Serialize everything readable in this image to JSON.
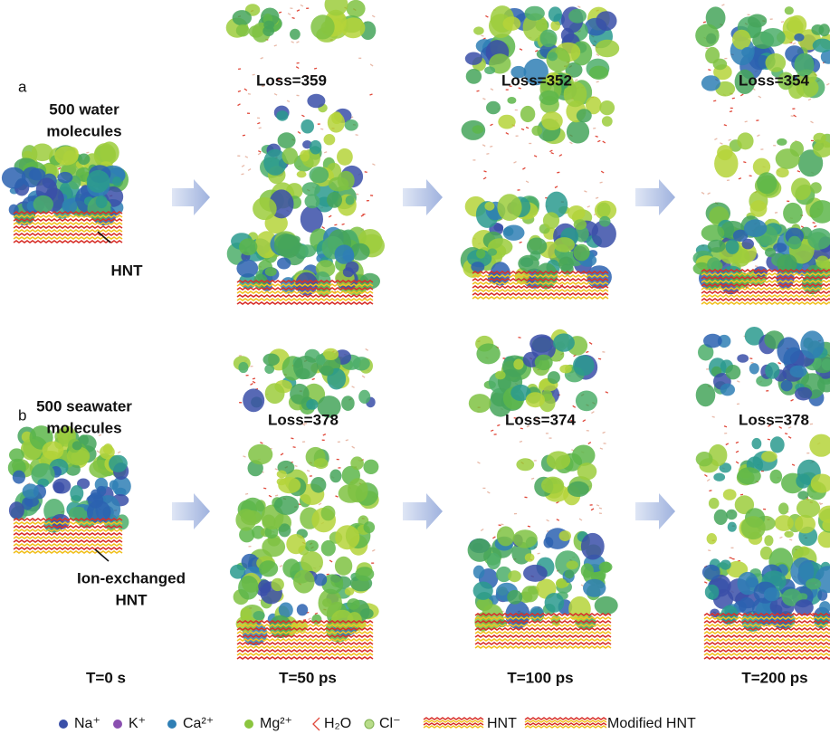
{
  "panels": [
    {
      "label": "a",
      "sample": [
        "500 water",
        "molecules"
      ],
      "substrate": [
        "HNT"
      ],
      "losses": [
        "Loss=359",
        "Loss=352",
        "Loss=354"
      ]
    },
    {
      "label": "b",
      "sample": [
        "500 seawater",
        "molecules"
      ],
      "substrate": [
        "Ion-exchanged",
        "HNT"
      ],
      "losses": [
        "Loss=378",
        "Loss=374",
        "Loss=378"
      ]
    }
  ],
  "times": [
    "T=0 s",
    "T=50 ps",
    "T=100 ps",
    "T=200 ps"
  ],
  "legend": [
    "Na⁺",
    "K⁺",
    "Ca²⁺",
    "Mg²⁺",
    "H₂O",
    "Cl⁻",
    "HNT",
    "Modified HNT"
  ]
}
